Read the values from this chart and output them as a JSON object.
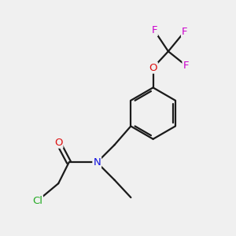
{
  "background_color": "#f0f0f0",
  "atom_colors": {
    "C": "#000000",
    "N": "#1010dd",
    "O": "#dd1010",
    "F": "#cc00cc",
    "Cl": "#22aa22"
  },
  "bond_color": "#1a1a1a",
  "figsize": [
    3.0,
    3.0
  ],
  "dpi": 100,
  "xlim": [
    0,
    10
  ],
  "ylim": [
    0,
    10
  ]
}
